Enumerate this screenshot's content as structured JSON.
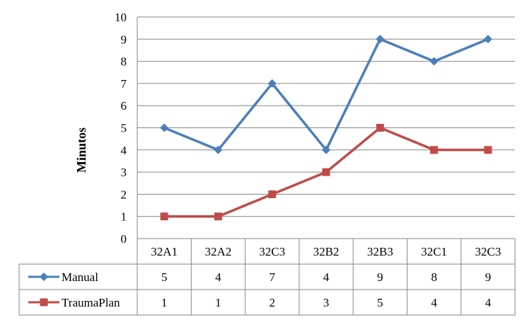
{
  "chart_data": {
    "type": "line",
    "title": "",
    "xlabel": "",
    "ylabel": "Minutos",
    "ylim": [
      0,
      10
    ],
    "yticks": [
      0,
      1,
      2,
      3,
      4,
      5,
      6,
      7,
      8,
      9,
      10
    ],
    "grid": true,
    "legend": "data-table",
    "categories": [
      "32A1",
      "32A2",
      "32C3",
      "32B2",
      "32B3",
      "32C1",
      "32C3"
    ],
    "series": [
      {
        "name": "Manual",
        "color": "#4a7ebb",
        "marker": "diamond",
        "values": [
          5,
          4,
          7,
          4,
          9,
          8,
          9
        ]
      },
      {
        "name": "TraumaPlan",
        "color": "#be4b48",
        "marker": "square",
        "values": [
          1,
          1,
          2,
          3,
          5,
          4,
          4
        ]
      }
    ]
  }
}
